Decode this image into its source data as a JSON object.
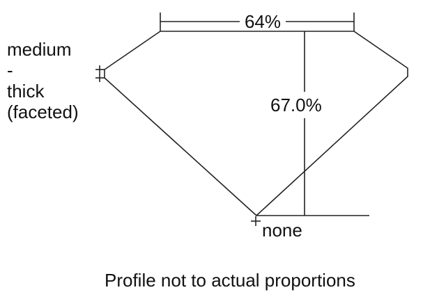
{
  "table_label": "64%",
  "depth_label": "67.0%",
  "girdle_label": [
    "medium",
    "-",
    "thick",
    "(faceted)"
  ],
  "culet_label": "none",
  "footnote": "Profile not to actual proportions",
  "colors": {
    "line": "#222222",
    "text": "#111111",
    "background": "#ffffff"
  }
}
